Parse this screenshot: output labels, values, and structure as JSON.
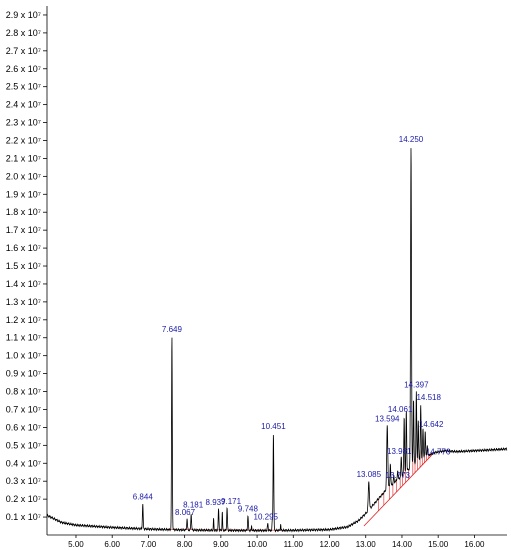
{
  "chart_data": {
    "type": "line",
    "title": "",
    "xlabel": "",
    "ylabel": "",
    "xlim": [
      4.2,
      16.9
    ],
    "ylim": [
      0,
      29500000
    ],
    "grid": false,
    "colors": {
      "trace": "#000000",
      "label": "#1a1aa8",
      "integration": "#e02020"
    },
    "y_ticks": [
      {
        "value": 1000000,
        "label": "0.1 x 10⁷"
      },
      {
        "value": 2000000,
        "label": "0.2 x 10⁷"
      },
      {
        "value": 3000000,
        "label": "0.3 x 10⁷"
      },
      {
        "value": 4000000,
        "label": "0.4 x 10⁷"
      },
      {
        "value": 5000000,
        "label": "0.5 x 10⁷"
      },
      {
        "value": 6000000,
        "label": "0.6 x 10⁷"
      },
      {
        "value": 7000000,
        "label": "0.7 x 10⁷"
      },
      {
        "value": 8000000,
        "label": "0.8 x 10⁷"
      },
      {
        "value": 9000000,
        "label": "0.9 x 10⁷"
      },
      {
        "value": 10000000,
        "label": "1.0 x 10⁷"
      },
      {
        "value": 11000000,
        "label": "1.1 x 10⁷"
      },
      {
        "value": 12000000,
        "label": "1.2 x 10⁷"
      },
      {
        "value": 13000000,
        "label": "1.3 x 10⁷"
      },
      {
        "value": 14000000,
        "label": "1.4 x 10⁷"
      },
      {
        "value": 15000000,
        "label": "1.5 x 10⁷"
      },
      {
        "value": 16000000,
        "label": "1.6 x 10⁷"
      },
      {
        "value": 17000000,
        "label": "1.7 x 10⁷"
      },
      {
        "value": 18000000,
        "label": "1.8 x 10⁷"
      },
      {
        "value": 19000000,
        "label": "1.9 x 10⁷"
      },
      {
        "value": 20000000,
        "label": "2.0 x 10⁷"
      },
      {
        "value": 21000000,
        "label": "2.1 x 10⁷"
      },
      {
        "value": 22000000,
        "label": "2.2 x 10⁷"
      },
      {
        "value": 23000000,
        "label": "2.3 x 10⁷"
      },
      {
        "value": 24000000,
        "label": "2.4 x 10⁷"
      },
      {
        "value": 25000000,
        "label": "2.5 x 10⁷"
      },
      {
        "value": 26000000,
        "label": "2.6 x 10⁷"
      },
      {
        "value": 27000000,
        "label": "2.7 x 10⁷"
      },
      {
        "value": 28000000,
        "label": "2.8 x 10⁷"
      },
      {
        "value": 29000000,
        "label": "2.9 x 10⁷"
      }
    ],
    "x_ticks": [
      {
        "value": 5,
        "label": "5.00"
      },
      {
        "value": 6,
        "label": "6.00"
      },
      {
        "value": 7,
        "label": "7.00"
      },
      {
        "value": 8,
        "label": "8.00"
      },
      {
        "value": 9,
        "label": "9.00"
      },
      {
        "value": 10,
        "label": "10.00"
      },
      {
        "value": 11,
        "label": "11.00"
      },
      {
        "value": 12,
        "label": "12.00"
      },
      {
        "value": 13,
        "label": "13.00"
      },
      {
        "value": 14,
        "label": "14.00"
      },
      {
        "value": 15,
        "label": "15.00"
      },
      {
        "value": 16,
        "label": "16.00"
      }
    ],
    "peaks": [
      {
        "label": "6.844",
        "x": 6.844,
        "y": 1750000,
        "width": 0.02
      },
      {
        "label": "7.649",
        "x": 7.649,
        "y": 11100000,
        "width": 0.02
      },
      {
        "label": "8.067",
        "x": 8.067,
        "y": 900000,
        "width": 0.02
      },
      {
        "label": "8.181",
        "x": 8.181,
        "y": 1200000,
        "width": 0.02
      },
      {
        "label": "8.937",
        "x": 8.937,
        "y": 1450000,
        "width": 0.02
      },
      {
        "label": "9.171",
        "x": 9.171,
        "y": 1500000,
        "width": 0.02
      },
      {
        "label": "9.748",
        "x": 9.748,
        "y": 1100000,
        "width": 0.02
      },
      {
        "label": "10.295",
        "x": 10.295,
        "y": 650000,
        "width": 0.02
      },
      {
        "label": "10.451",
        "x": 10.451,
        "y": 5700000,
        "width": 0.02
      },
      {
        "label": "13.085",
        "x": 13.085,
        "y": 3000000,
        "width": 0.03
      },
      {
        "label": "13.594",
        "x": 13.594,
        "y": 6100000,
        "width": 0.03
      },
      {
        "label": "13.773",
        "x": 13.773,
        "y": 3300000,
        "width": 0.02
      },
      {
        "label": "13.981",
        "x": 13.981,
        "y": 4400000,
        "width": 0.02
      },
      {
        "label": "14.061",
        "x": 14.061,
        "y": 6650000,
        "width": 0.02
      },
      {
        "label": "14.250",
        "x": 14.25,
        "y": 21700000,
        "width": 0.025
      },
      {
        "label": "14.397",
        "x": 14.397,
        "y": 8000000,
        "width": 0.02
      },
      {
        "label": "14.518",
        "x": 14.518,
        "y": 7300000,
        "width": 0.02
      },
      {
        "label": "14.642",
        "x": 14.642,
        "y": 5800000,
        "width": 0.02
      },
      {
        "label": "14.776",
        "x": 14.776,
        "y": 4500000,
        "width": 0.02
      }
    ],
    "unlabeled_peaks": [
      {
        "x": 5.15,
        "y": 250000,
        "width": 0.015
      },
      {
        "x": 8.8,
        "y": 900000,
        "width": 0.015
      },
      {
        "x": 9.04,
        "y": 1300000,
        "width": 0.015
      },
      {
        "x": 9.85,
        "y": 500000,
        "width": 0.015
      },
      {
        "x": 10.42,
        "y": 800000,
        "width": 0.015
      },
      {
        "x": 10.65,
        "y": 600000,
        "width": 0.015
      },
      {
        "x": 13.68,
        "y": 4000000,
        "width": 0.02
      },
      {
        "x": 13.88,
        "y": 3600000,
        "width": 0.02
      },
      {
        "x": 14.12,
        "y": 7000000,
        "width": 0.02
      },
      {
        "x": 14.32,
        "y": 7600000,
        "width": 0.02
      },
      {
        "x": 14.45,
        "y": 6400000,
        "width": 0.02
      },
      {
        "x": 14.58,
        "y": 6000000,
        "width": 0.02
      },
      {
        "x": 14.7,
        "y": 5000000,
        "width": 0.02
      }
    ],
    "baseline": [
      [
        4.2,
        1100000
      ],
      [
        4.6,
        700000
      ],
      [
        5.0,
        550000
      ],
      [
        6.0,
        420000
      ],
      [
        7.0,
        330000
      ],
      [
        8.0,
        280000
      ],
      [
        9.0,
        260000
      ],
      [
        10.0,
        250000
      ],
      [
        11.0,
        260000
      ],
      [
        12.0,
        300000
      ],
      [
        12.5,
        450000
      ],
      [
        12.8,
        800000
      ],
      [
        13.0,
        1200000
      ],
      [
        13.3,
        1900000
      ],
      [
        13.6,
        2600000
      ],
      [
        14.0,
        3300000
      ],
      [
        14.3,
        3900000
      ],
      [
        14.6,
        4300000
      ],
      [
        14.9,
        4600000
      ],
      [
        15.2,
        4700000
      ],
      [
        15.5,
        4650000
      ],
      [
        16.0,
        4700000
      ],
      [
        16.5,
        4750000
      ],
      [
        16.9,
        4800000
      ]
    ]
  }
}
